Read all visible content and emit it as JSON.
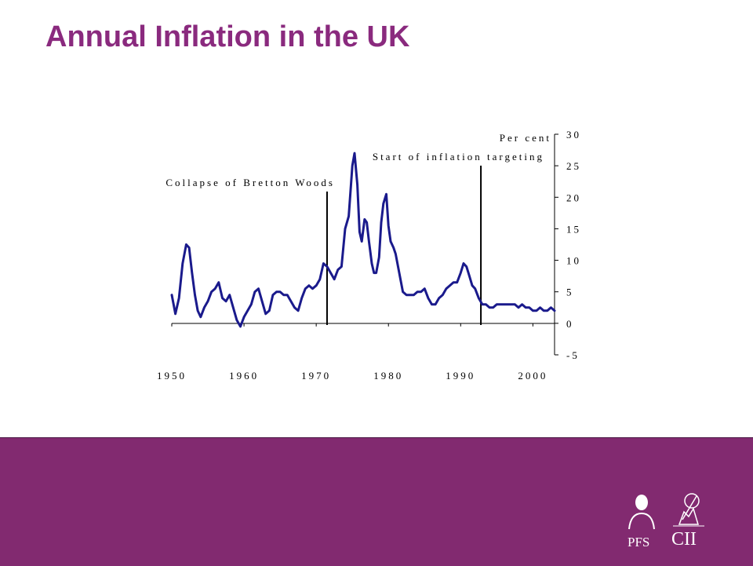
{
  "slide": {
    "title": "Annual Inflation in the UK"
  },
  "colors": {
    "title": "#8a2a7e",
    "footer": "#822a70",
    "series": "#1a1a8c"
  },
  "logos": {
    "pfs": "PFS",
    "cii": "CII"
  },
  "chart_data": {
    "type": "line",
    "title": "",
    "xlabel": "",
    "ylabel": "Per cent",
    "xlim": [
      1950,
      2003
    ],
    "ylim": [
      -5,
      30
    ],
    "x_ticks": [
      1950,
      1960,
      1970,
      1980,
      1990,
      2000
    ],
    "x_tick_labels": [
      "1950",
      "1960",
      "1970",
      "1980",
      "1990",
      "2000"
    ],
    "y_ticks": [
      -5,
      0,
      5,
      10,
      15,
      20,
      25,
      30
    ],
    "y_tick_labels": [
      "-5",
      "0",
      "5",
      "10",
      "15",
      "20",
      "25",
      "30"
    ],
    "y_axis_side": "right",
    "grid": false,
    "annotations": [
      {
        "label": "Collapse of Bretton Woods",
        "x": 1971.5
      },
      {
        "label": "Start of inflation targeting",
        "x": 1992.8
      }
    ],
    "series": [
      {
        "x": [
          1950.0,
          1950.5,
          1951.0,
          1951.5,
          1952.0,
          1952.4,
          1952.8,
          1953.2,
          1953.6,
          1954.0,
          1954.5,
          1955.0,
          1955.5,
          1956.0,
          1956.5,
          1957.0,
          1957.5,
          1958.0,
          1958.5,
          1959.0,
          1959.5,
          1960.0,
          1960.5,
          1961.0,
          1961.5,
          1962.0,
          1962.5,
          1963.0,
          1963.5,
          1964.0,
          1964.5,
          1965.0,
          1965.5,
          1966.0,
          1966.5,
          1967.0,
          1967.5,
          1968.0,
          1968.5,
          1969.0,
          1969.5,
          1970.0,
          1970.5,
          1971.0,
          1971.5,
          1972.0,
          1972.5,
          1973.0,
          1973.5,
          1974.0,
          1974.5,
          1975.0,
          1975.3,
          1975.7,
          1976.0,
          1976.3,
          1976.7,
          1977.0,
          1977.3,
          1977.7,
          1978.0,
          1978.3,
          1978.7,
          1979.0,
          1979.3,
          1979.7,
          1980.0,
          1980.3,
          1980.7,
          1981.0,
          1981.5,
          1982.0,
          1982.5,
          1983.0,
          1983.5,
          1984.0,
          1984.5,
          1985.0,
          1985.5,
          1986.0,
          1986.5,
          1987.0,
          1987.5,
          1988.0,
          1988.5,
          1989.0,
          1989.5,
          1990.0,
          1990.4,
          1990.8,
          1991.2,
          1991.6,
          1992.0,
          1992.5,
          1993.0,
          1993.5,
          1994.0,
          1994.5,
          1995.0,
          1995.5,
          1996.0,
          1996.5,
          1997.0,
          1997.5,
          1998.0,
          1998.5,
          1999.0,
          1999.5,
          2000.0,
          2000.5,
          2001.0,
          2001.5,
          2002.0,
          2002.5,
          2003.0
        ],
        "y": [
          4.5,
          1.5,
          4.0,
          9.5,
          12.5,
          12.0,
          8.0,
          4.5,
          2.0,
          1.0,
          2.5,
          3.5,
          5.0,
          5.5,
          6.5,
          4.0,
          3.5,
          4.5,
          2.5,
          0.5,
          -0.5,
          1.0,
          2.0,
          3.0,
          5.0,
          5.5,
          3.5,
          1.5,
          2.0,
          4.5,
          5.0,
          5.0,
          4.5,
          4.5,
          3.5,
          2.5,
          2.0,
          4.0,
          5.5,
          6.0,
          5.5,
          6.0,
          7.0,
          9.5,
          9.0,
          8.0,
          7.0,
          8.5,
          9.0,
          15.0,
          17.0,
          25.0,
          27.0,
          22.0,
          14.5,
          13.0,
          16.5,
          16.0,
          13.0,
          9.5,
          8.0,
          8.0,
          10.5,
          16.0,
          19.0,
          20.5,
          15.5,
          13.0,
          12.0,
          11.0,
          8.0,
          5.0,
          4.5,
          4.5,
          4.5,
          5.0,
          5.0,
          5.5,
          4.0,
          3.0,
          3.0,
          4.0,
          4.5,
          5.5,
          6.0,
          6.5,
          6.5,
          8.0,
          9.5,
          9.0,
          7.5,
          6.0,
          5.5,
          4.0,
          3.0,
          3.0,
          2.5,
          2.5,
          3.0,
          3.0,
          3.0,
          3.0,
          3.0,
          3.0,
          2.5,
          3.0,
          2.5,
          2.5,
          2.0,
          2.0,
          2.5,
          2.0,
          2.0,
          2.5,
          2.0
        ]
      }
    ]
  }
}
